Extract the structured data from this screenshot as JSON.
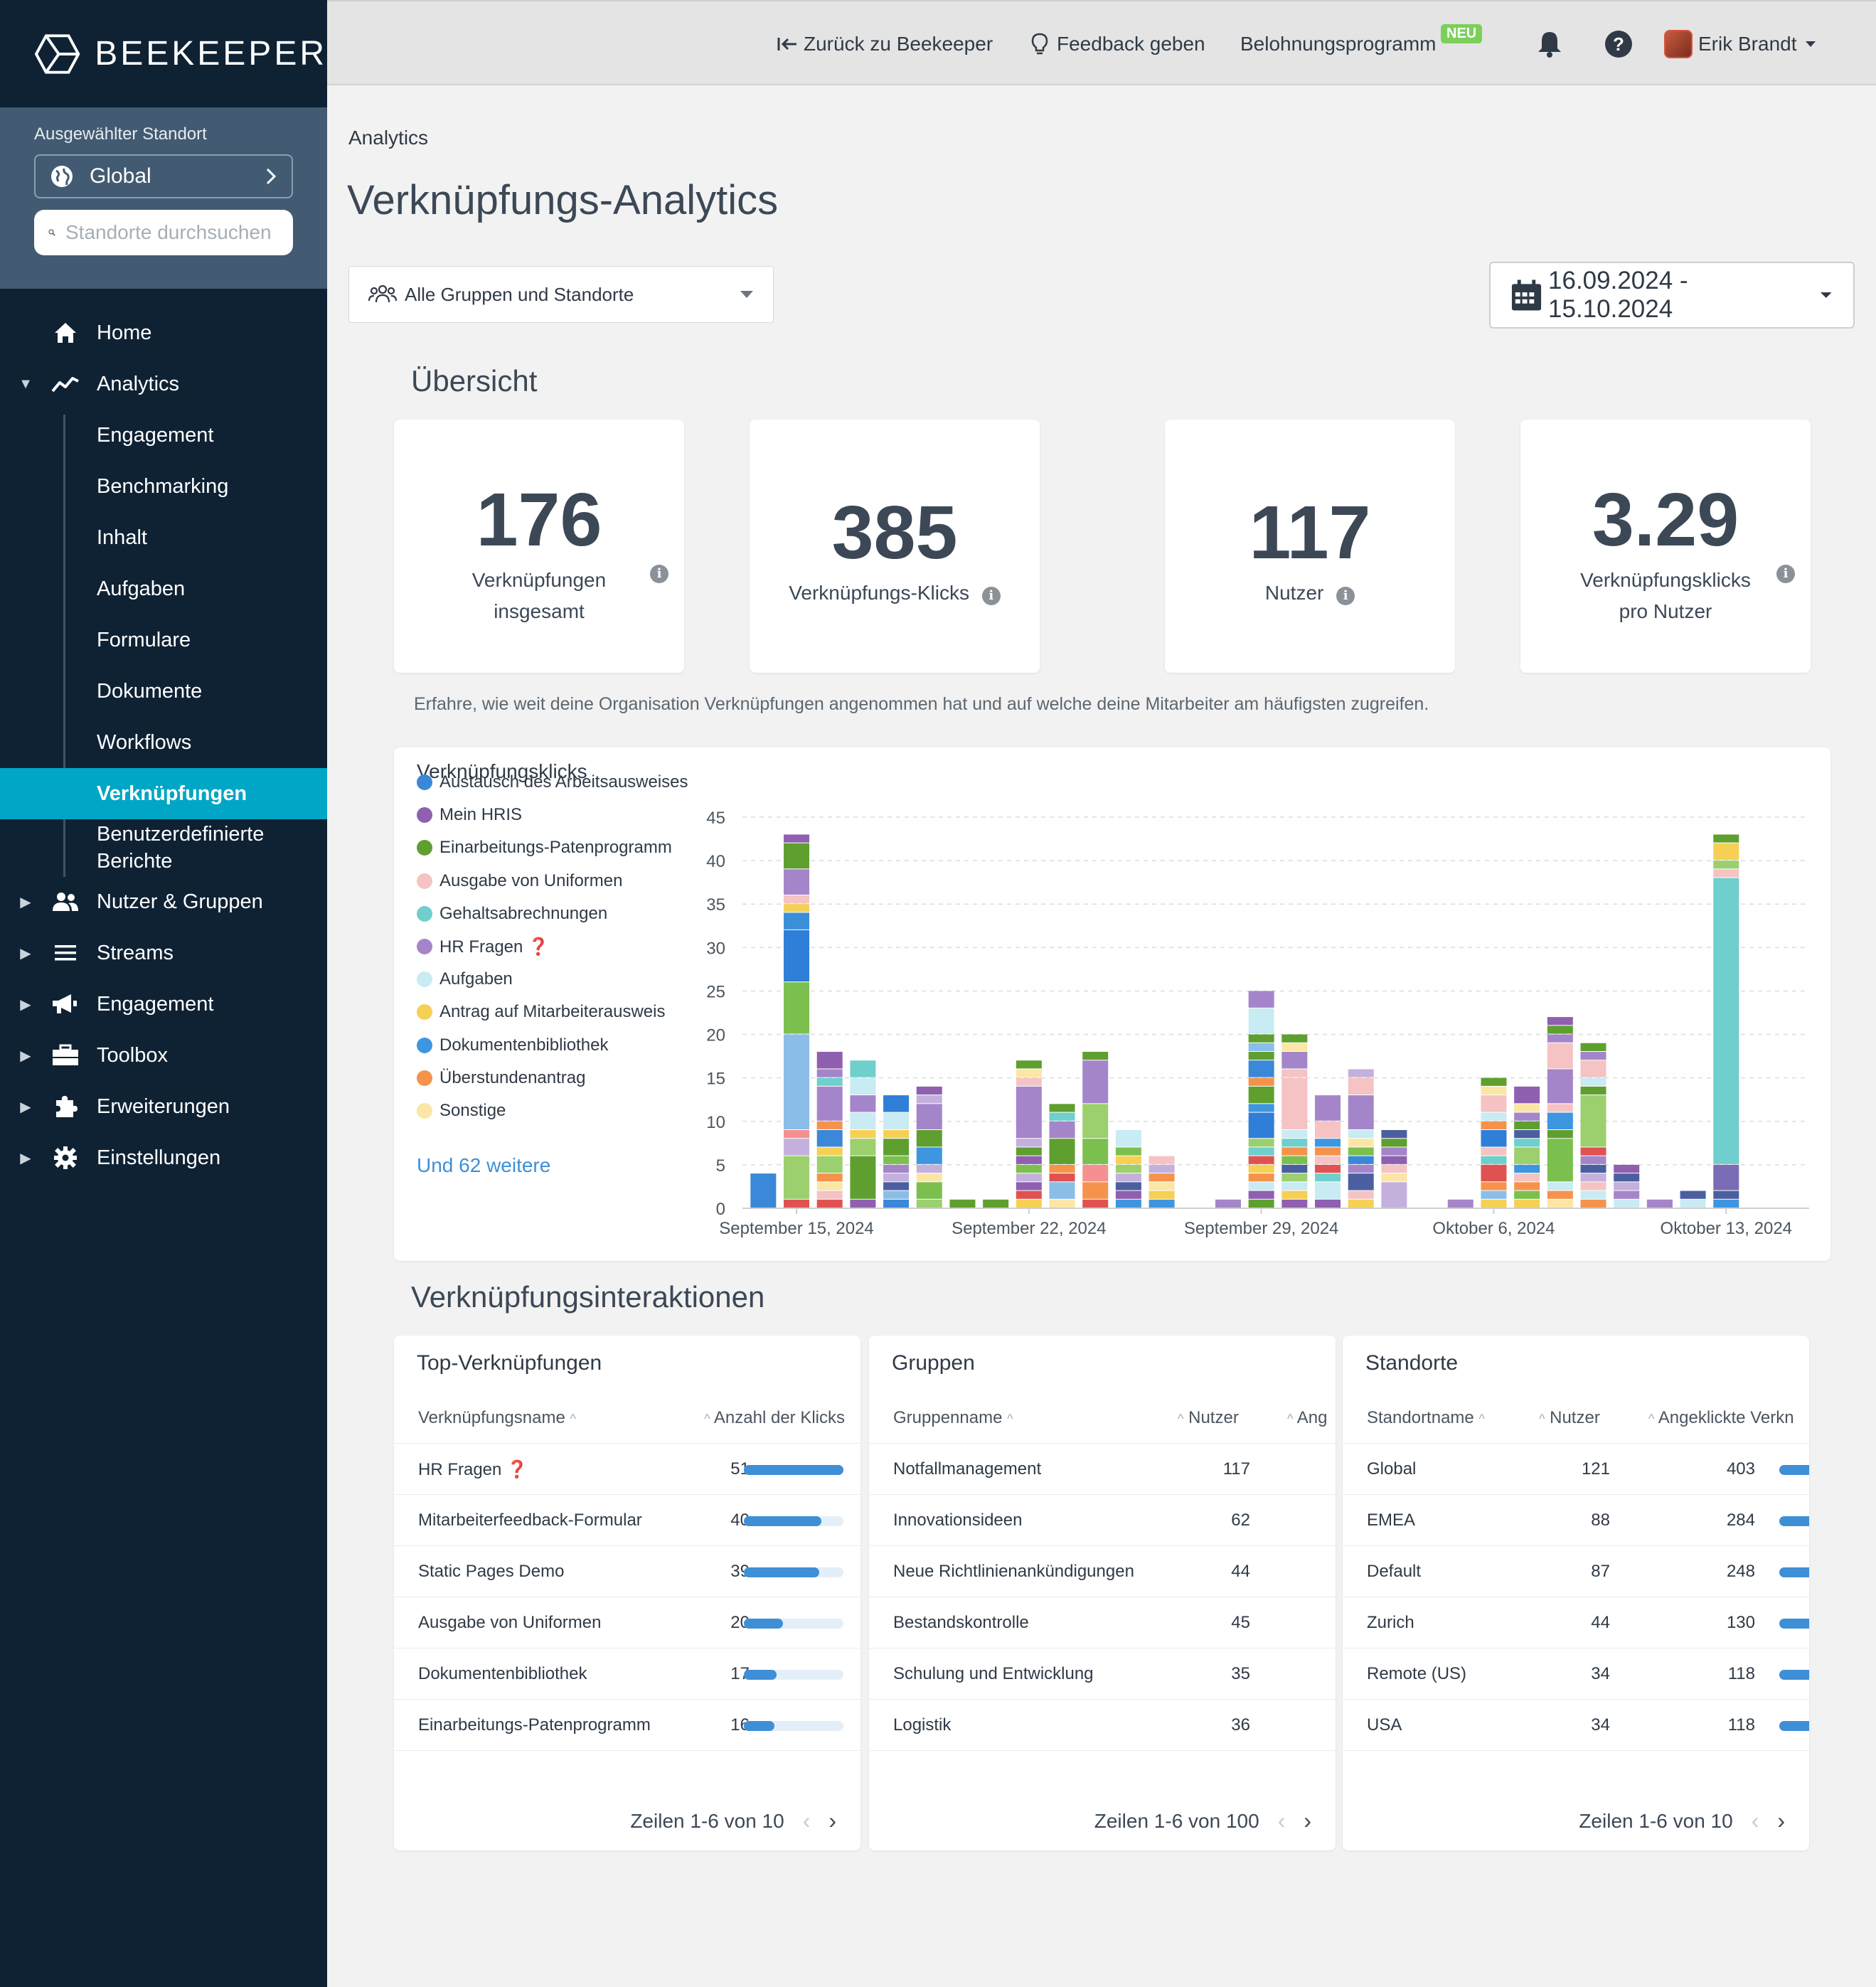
{
  "app": {
    "logo_text": "BEEKEEPER"
  },
  "sidebar": {
    "location_label": "Ausgewählter Standort",
    "location_value": "Global",
    "search_placeholder": "Standorte durchsuchen",
    "nav": [
      {
        "label": "Home",
        "icon": "home-icon"
      },
      {
        "label": "Analytics",
        "icon": "analytics-icon",
        "expanded": true
      },
      {
        "label": "Nutzer & Gruppen",
        "icon": "users-icon"
      },
      {
        "label": "Streams",
        "icon": "streams-icon"
      },
      {
        "label": "Engagement",
        "icon": "megaphone-icon"
      },
      {
        "label": "Toolbox",
        "icon": "toolbox-icon"
      },
      {
        "label": "Erweiterungen",
        "icon": "puzzle-icon"
      },
      {
        "label": "Einstellungen",
        "icon": "gear-icon"
      }
    ],
    "analytics_sub": [
      "Engagement",
      "Benchmarking",
      "Inhalt",
      "Aufgaben",
      "Formulare",
      "Dokumente",
      "Workflows",
      "Verknüpfungen",
      "Benutzerdefinierte Berichte"
    ],
    "active_sub": "Verknüpfungen"
  },
  "topbar": {
    "back": "Zurück zu Beekeeper",
    "feedback": "Feedback geben",
    "rewards": "Belohnungsprogramm",
    "rewards_badge": "NEU",
    "user": "Erik Brandt"
  },
  "page": {
    "breadcrumb": "Analytics",
    "title": "Verknüpfungs-Analytics",
    "group_filter": "Alle Gruppen und Standorte",
    "date_range": "16.09.2024 - 15.10.2024"
  },
  "overview": {
    "title": "Übersicht",
    "kpis": [
      {
        "value": "176",
        "label1": "Verknüpfungen",
        "label2": "insgesamt"
      },
      {
        "value": "385",
        "label1": "Verknüpfungs-Klicks",
        "label2": ""
      },
      {
        "value": "117",
        "label1": "Nutzer",
        "label2": ""
      },
      {
        "value": "3.29",
        "label1": "Verknüpfungsklicks",
        "label2": "pro Nutzer"
      }
    ],
    "description": "Erfahre, wie weit deine Organisation Verknüpfungen angenommen hat und auf welche deine Mitarbeiter am häufigsten zugreifen."
  },
  "chart_data": {
    "type": "bar",
    "stacked": true,
    "title": "Verknüpfungsklicks",
    "ylim": [
      0,
      45
    ],
    "yticks": [
      0,
      5,
      10,
      15,
      20,
      25,
      30,
      35,
      40,
      45
    ],
    "grid": true,
    "legend_position": "left",
    "x_tick_labels": [
      "September 15, 2024",
      "September 22, 2024",
      "September 29, 2024",
      "Oktober 6, 2024",
      "Oktober 13, 2024"
    ],
    "x_tick_indices": [
      1,
      8,
      15,
      22,
      29
    ],
    "legend": [
      {
        "name": "Austausch des Arbeitsausweises",
        "color": "#3b87d8"
      },
      {
        "name": "Mein HRIS",
        "color": "#8f5fb0"
      },
      {
        "name": "Einarbeitungs-Patenprogramm",
        "color": "#5f9f2f"
      },
      {
        "name": "Ausgabe von Uniformen",
        "color": "#f5c3c3"
      },
      {
        "name": "Gehaltsabrechnungen",
        "color": "#6fcfcc"
      },
      {
        "name": "HR Fragen ❓",
        "color": "#a585c9"
      },
      {
        "name": "Aufgaben",
        "color": "#c9ebf3"
      },
      {
        "name": "Antrag auf Mitarbeiterausweis",
        "color": "#f5d055"
      },
      {
        "name": "Dokumentenbibliothek",
        "color": "#3e96e0"
      },
      {
        "name": "Überstundenantrag",
        "color": "#f5934d"
      },
      {
        "name": "Sonstige",
        "color": "#fbe6a6"
      }
    ],
    "legend_more": "Und 62 weitere",
    "dates": [
      "14.09",
      "15.09",
      "16.09",
      "17.09",
      "18.09",
      "19.09",
      "20.09",
      "21.09",
      "22.09",
      "23.09",
      "24.09",
      "25.09",
      "26.09",
      "27.09",
      "28.09",
      "29.09",
      "30.09",
      "01.10",
      "02.10",
      "03.10",
      "04.10",
      "05.10",
      "06.10",
      "07.10",
      "08.10",
      "09.10",
      "10.10",
      "11.10",
      "12.10",
      "13.10",
      "14.10",
      "15.10"
    ],
    "totals": [
      4,
      43,
      18,
      17,
      13,
      14,
      1,
      1,
      19,
      12,
      18,
      9,
      6,
      0,
      1,
      23,
      20,
      13,
      16,
      9,
      0,
      1,
      16,
      14,
      22,
      22,
      5,
      1,
      2,
      45,
      0,
      0
    ],
    "stacks": [
      [
        [
          4,
          "#3b87d8"
        ]
      ],
      [
        [
          1,
          "#e05252"
        ],
        [
          5,
          "#9ccf6e"
        ],
        [
          2,
          "#c4b0dc"
        ],
        [
          1,
          "#f59090"
        ],
        [
          11,
          "#8bbde9"
        ],
        [
          6,
          "#7bc04f"
        ],
        [
          6,
          "#2f7ed8"
        ],
        [
          2,
          "#3b8fd8"
        ],
        [
          1,
          "#f5d055"
        ],
        [
          1,
          "#f5c3c3"
        ],
        [
          3,
          "#a585c9"
        ],
        [
          3,
          "#5f9f2f"
        ],
        [
          1,
          "#8f5fb0"
        ]
      ],
      [
        [
          1,
          "#e05252"
        ],
        [
          1,
          "#f5c3c3"
        ],
        [
          1,
          "#fbe6a6"
        ],
        [
          1,
          "#f5934d"
        ],
        [
          2,
          "#9ccf6e"
        ],
        [
          1,
          "#f5d055"
        ],
        [
          2,
          "#3b87d8"
        ],
        [
          1,
          "#f5934d"
        ],
        [
          4,
          "#a585c9"
        ],
        [
          1,
          "#6fcfcc"
        ],
        [
          1,
          "#a585c9"
        ],
        [
          2,
          "#8f5fb0"
        ]
      ],
      [
        [
          1,
          "#8f5fb0"
        ],
        [
          5,
          "#5f9f2f"
        ],
        [
          2,
          "#9ccf6e"
        ],
        [
          1,
          "#f5d055"
        ],
        [
          2,
          "#c9ebf3"
        ],
        [
          2,
          "#a585c9"
        ],
        [
          2,
          "#c9ebf3"
        ],
        [
          2,
          "#6fcfcc"
        ]
      ],
      [
        [
          1,
          "#3b87d8"
        ],
        [
          1,
          "#8bbde9"
        ],
        [
          1,
          "#4b5fa0"
        ],
        [
          1,
          "#c4b0dc"
        ],
        [
          1,
          "#a585c9"
        ],
        [
          1,
          "#7bc04f"
        ],
        [
          2,
          "#5f9f2f"
        ],
        [
          1,
          "#f5d055"
        ],
        [
          2,
          "#c9ebf3"
        ],
        [
          2,
          "#2f7ed8"
        ]
      ],
      [
        [
          1,
          "#9ccf6e"
        ],
        [
          2,
          "#7bc04f"
        ],
        [
          1,
          "#fbe6a6"
        ],
        [
          1,
          "#c4b0dc"
        ],
        [
          2,
          "#3e96e0"
        ],
        [
          2,
          "#5f9f2f"
        ],
        [
          3,
          "#a585c9"
        ],
        [
          1,
          "#c4b0dc"
        ],
        [
          1,
          "#8f5fb0"
        ]
      ],
      [
        [
          1,
          "#5f9f2f"
        ]
      ],
      [
        [
          1,
          "#5f9f2f"
        ]
      ],
      [
        [
          1,
          "#f5d055"
        ],
        [
          1,
          "#e05252"
        ],
        [
          1,
          "#8f5fb0"
        ],
        [
          1,
          "#c4b0dc"
        ],
        [
          1,
          "#7bc04f"
        ],
        [
          1,
          "#8f5fb0"
        ],
        [
          1,
          "#5f9f2f"
        ],
        [
          1,
          "#c4b0dc"
        ],
        [
          6,
          "#a585c9"
        ],
        [
          1,
          "#f5c3c3"
        ],
        [
          1,
          "#fbe6a6"
        ],
        [
          1,
          "#5f9f2f"
        ]
      ],
      [
        [
          1,
          "#fbe6a6"
        ],
        [
          2,
          "#8bbde9"
        ],
        [
          1,
          "#e05252"
        ],
        [
          1,
          "#f5934d"
        ],
        [
          3,
          "#5f9f2f"
        ],
        [
          2,
          "#a585c9"
        ],
        [
          1,
          "#6fcfcc"
        ],
        [
          1,
          "#5f9f2f"
        ]
      ],
      [
        [
          1,
          "#e05252"
        ],
        [
          2,
          "#f5934d"
        ],
        [
          2,
          "#f59090"
        ],
        [
          3,
          "#7bc04f"
        ],
        [
          4,
          "#9ccf6e"
        ],
        [
          5,
          "#a585c9"
        ],
        [
          1,
          "#5f9f2f"
        ]
      ],
      [
        [
          1,
          "#3e96e0"
        ],
        [
          1,
          "#8f5fb0"
        ],
        [
          1,
          "#4b5fa0"
        ],
        [
          1,
          "#c4b0dc"
        ],
        [
          1,
          "#9ccf6e"
        ],
        [
          1,
          "#f5d055"
        ],
        [
          1,
          "#7bc04f"
        ],
        [
          2,
          "#c9ebf3"
        ]
      ],
      [
        [
          1,
          "#3e96e0"
        ],
        [
          1,
          "#f5d055"
        ],
        [
          1,
          "#fbe6a6"
        ],
        [
          1,
          "#f5934d"
        ],
        [
          1,
          "#c4b0dc"
        ],
        [
          1,
          "#f5c3c3"
        ]
      ],
      [],
      [
        [
          1,
          "#a585c9"
        ]
      ],
      [
        [
          1,
          "#5f9f2f"
        ],
        [
          1,
          "#8f5fb0"
        ],
        [
          1,
          "#c9ebf3"
        ],
        [
          1,
          "#f5934d"
        ],
        [
          1,
          "#f5d055"
        ],
        [
          1,
          "#e05252"
        ],
        [
          1,
          "#6fcfcc"
        ],
        [
          1,
          "#9ccf6e"
        ],
        [
          3,
          "#2f7ed8"
        ],
        [
          1,
          "#3e96e0"
        ],
        [
          2,
          "#5f9f2f"
        ],
        [
          1,
          "#f5934d"
        ],
        [
          2,
          "#3b87d8"
        ],
        [
          1,
          "#5f9f2f"
        ],
        [
          1,
          "#8bbde9"
        ],
        [
          1,
          "#5f9f2f"
        ],
        [
          3,
          "#c9ebf3"
        ],
        [
          2,
          "#a585c9"
        ]
      ],
      [
        [
          1,
          "#8f5fb0"
        ],
        [
          1,
          "#f5d055"
        ],
        [
          1,
          "#c9ebf3"
        ],
        [
          1,
          "#9ccf6e"
        ],
        [
          1,
          "#4b5fa0"
        ],
        [
          1,
          "#7bc04f"
        ],
        [
          1,
          "#f5934d"
        ],
        [
          1,
          "#6fcfcc"
        ],
        [
          1,
          "#c9ebf3"
        ],
        [
          6,
          "#f5c3c3"
        ],
        [
          1,
          "#f5c3c3"
        ],
        [
          2,
          "#a585c9"
        ],
        [
          1,
          "#fbe6a6"
        ],
        [
          1,
          "#5f9f2f"
        ]
      ],
      [
        [
          1,
          "#8f5fb0"
        ],
        [
          2,
          "#c9ebf3"
        ],
        [
          1,
          "#6fcfcc"
        ],
        [
          1,
          "#e05252"
        ],
        [
          1,
          "#f5c3c3"
        ],
        [
          1,
          "#f5934d"
        ],
        [
          1,
          "#3e96e0"
        ],
        [
          2,
          "#f5c3c3"
        ],
        [
          3,
          "#a585c9"
        ]
      ],
      [
        [
          1,
          "#f5d055"
        ],
        [
          1,
          "#f5c3c3"
        ],
        [
          2,
          "#4b5fa0"
        ],
        [
          1,
          "#a585c9"
        ],
        [
          1,
          "#3b87d8"
        ],
        [
          1,
          "#7bc04f"
        ],
        [
          1,
          "#fbe6a6"
        ],
        [
          1,
          "#c9ebf3"
        ],
        [
          4,
          "#a585c9"
        ],
        [
          2,
          "#f5c3c3"
        ],
        [
          1,
          "#c4b0dc"
        ]
      ],
      [
        [
          3,
          "#c4b0dc"
        ],
        [
          1,
          "#fbe6a6"
        ],
        [
          1,
          "#f5c3c3"
        ],
        [
          1,
          "#8f5fb0"
        ],
        [
          1,
          "#a585c9"
        ],
        [
          1,
          "#5f9f2f"
        ],
        [
          1,
          "#4b5fa0"
        ]
      ],
      [],
      [
        [
          1,
          "#a585c9"
        ]
      ],
      [
        [
          1,
          "#f5d055"
        ],
        [
          1,
          "#8bbde9"
        ],
        [
          1,
          "#f5934d"
        ],
        [
          2,
          "#e05252"
        ],
        [
          1,
          "#6fcfcc"
        ],
        [
          1,
          "#f5c3c3"
        ],
        [
          2,
          "#2f7ed8"
        ],
        [
          1,
          "#f5934d"
        ],
        [
          1,
          "#c9ebf3"
        ],
        [
          2,
          "#f5c3c3"
        ],
        [
          1,
          "#fbe6a6"
        ],
        [
          1,
          "#5f9f2f"
        ]
      ],
      [
        [
          1,
          "#f5d055"
        ],
        [
          1,
          "#7bc04f"
        ],
        [
          1,
          "#f5934d"
        ],
        [
          1,
          "#f5c3c3"
        ],
        [
          1,
          "#3e96e0"
        ],
        [
          2,
          "#9ccf6e"
        ],
        [
          1,
          "#6fcfcc"
        ],
        [
          1,
          "#4b5fa0"
        ],
        [
          1,
          "#5f9f2f"
        ],
        [
          1,
          "#a585c9"
        ],
        [
          1,
          "#fbe6a6"
        ],
        [
          2,
          "#8f5fb0"
        ]
      ],
      [
        [
          1,
          "#fbe6a6"
        ],
        [
          1,
          "#f5934d"
        ],
        [
          1,
          "#c9ebf3"
        ],
        [
          5,
          "#7bc04f"
        ],
        [
          1,
          "#5f9f2f"
        ],
        [
          2,
          "#3e96e0"
        ],
        [
          1,
          "#f5c3c3"
        ],
        [
          4,
          "#a585c9"
        ],
        [
          3,
          "#f5c3c3"
        ],
        [
          1,
          "#a585c9"
        ],
        [
          1,
          "#5f9f2f"
        ],
        [
          1,
          "#8f5fb0"
        ]
      ],
      [
        [
          1,
          "#f5934d"
        ],
        [
          1,
          "#c9ebf3"
        ],
        [
          1,
          "#f5c3c3"
        ],
        [
          1,
          "#c4b0dc"
        ],
        [
          1,
          "#4b5fa0"
        ],
        [
          1,
          "#a585c9"
        ],
        [
          1,
          "#e05252"
        ],
        [
          6,
          "#9ccf6e"
        ],
        [
          1,
          "#5f9f2f"
        ],
        [
          1,
          "#c9ebf3"
        ],
        [
          2,
          "#f5c3c3"
        ],
        [
          1,
          "#a585c9"
        ],
        [
          1,
          "#5f9f2f"
        ]
      ],
      [
        [
          1,
          "#c9ebf3"
        ],
        [
          1,
          "#a585c9"
        ],
        [
          1,
          "#c4b0dc"
        ],
        [
          1,
          "#4b5fa0"
        ],
        [
          1,
          "#8f5fb0"
        ]
      ],
      [
        [
          1,
          "#a585c9"
        ]
      ],
      [
        [
          1,
          "#c9ebf3"
        ],
        [
          1,
          "#4b5fa0"
        ]
      ],
      [
        [
          1,
          "#3e96e0"
        ],
        [
          1,
          "#4b5fa0"
        ],
        [
          3,
          "#7c6bb5"
        ],
        [
          33,
          "#6fcfcc"
        ],
        [
          1,
          "#f5c3c3"
        ],
        [
          1,
          "#9ccf6e"
        ],
        [
          2,
          "#f5d055"
        ],
        [
          1,
          "#5f9f2f"
        ]
      ],
      [],
      []
    ]
  },
  "interactions": {
    "title": "Verknüpfungsinteraktionen",
    "top_links": {
      "title": "Top-Verknüpfungen",
      "col_name": "Verknüpfungsname",
      "col_clicks": "Anzahl der Klicks",
      "rows": [
        {
          "name": "HR Fragen ❓",
          "clicks": "51",
          "fraction": 1.0
        },
        {
          "name": "Mitarbeiterfeedback-Formular",
          "clicks": "40",
          "fraction": 0.78
        },
        {
          "name": "Static Pages Demo",
          "clicks": "39",
          "fraction": 0.76
        },
        {
          "name": "Ausgabe von Uniformen",
          "clicks": "20",
          "fraction": 0.39
        },
        {
          "name": "Dokumentenbibliothek",
          "clicks": "17",
          "fraction": 0.33
        },
        {
          "name": "Einarbeitungs-Patenprogramm",
          "clicks": "16",
          "fraction": 0.31
        }
      ],
      "pagination": "Zeilen 1-6 von 10"
    },
    "groups": {
      "title": "Gruppen",
      "col_name": "Gruppenname",
      "col_users": "Nutzer",
      "col_third": "Ang",
      "rows": [
        {
          "name": "Notfallmanagement",
          "users": "117"
        },
        {
          "name": "Innovationsideen",
          "users": "62"
        },
        {
          "name": "Neue Richtlinienankündigungen",
          "users": "44"
        },
        {
          "name": "Bestandskontrolle",
          "users": "45"
        },
        {
          "name": "Schulung und Entwicklung",
          "users": "35"
        },
        {
          "name": "Logistik",
          "users": "36"
        }
      ],
      "pagination": "Zeilen 1-6 von 100"
    },
    "locations": {
      "title": "Standorte",
      "col_name": "Standortname",
      "col_users": "Nutzer",
      "col_clicked": "Angeklickte Verkn",
      "rows": [
        {
          "name": "Global",
          "users": "121",
          "clicked": "403"
        },
        {
          "name": "EMEA",
          "users": "88",
          "clicked": "284"
        },
        {
          "name": "Default",
          "users": "87",
          "clicked": "248"
        },
        {
          "name": "Zurich",
          "users": "44",
          "clicked": "130"
        },
        {
          "name": "Remote (US)",
          "users": "34",
          "clicked": "118"
        },
        {
          "name": "USA",
          "users": "34",
          "clicked": "118"
        }
      ],
      "pagination": "Zeilen 1-6 von 10"
    }
  }
}
